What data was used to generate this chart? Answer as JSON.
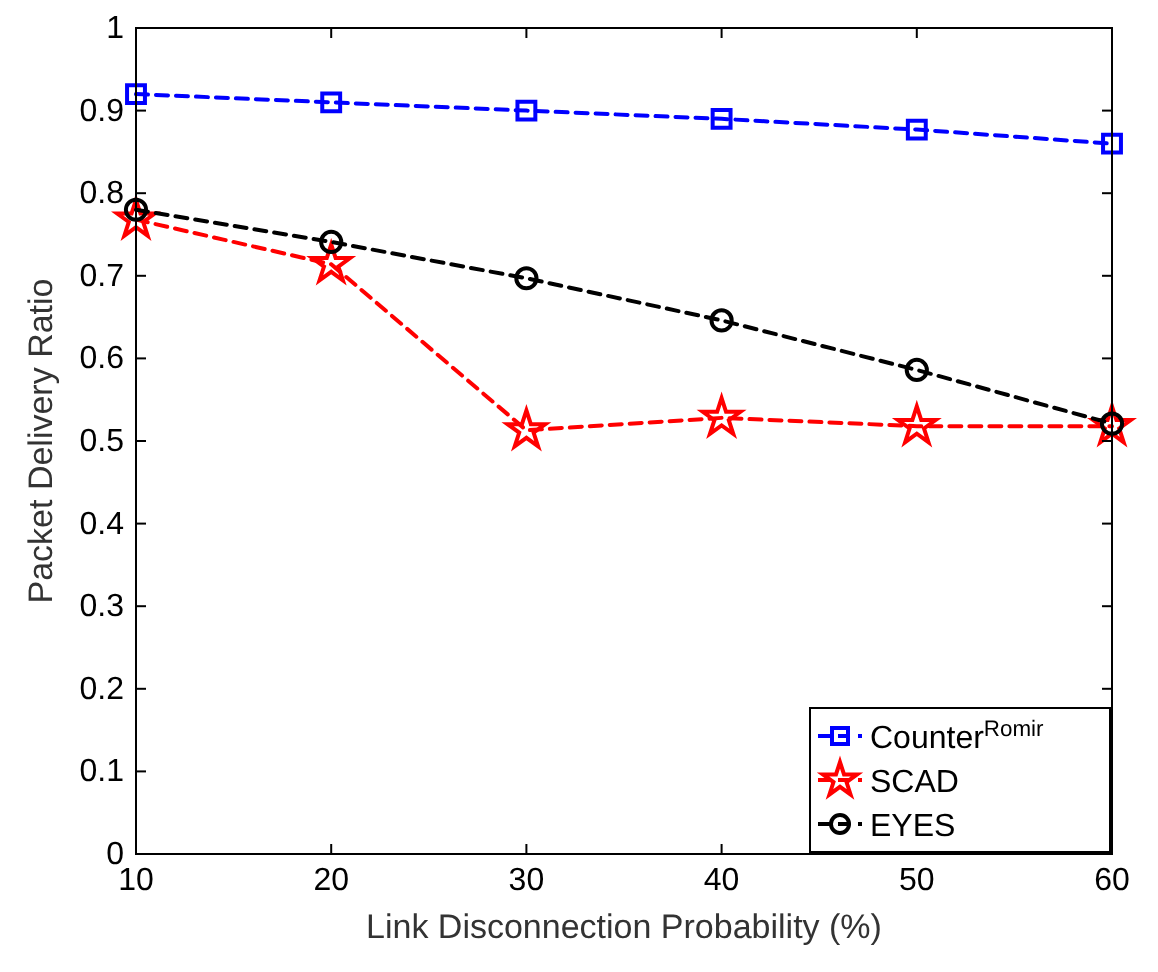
{
  "chart_data": {
    "type": "line",
    "xlabel": "Link Disconnection Probability (%)",
    "ylabel": "Packet Delivery Ratio",
    "x": [
      10,
      20,
      30,
      40,
      50,
      60
    ],
    "xlim": [
      10,
      60
    ],
    "xticks": [
      10,
      20,
      30,
      40,
      50,
      60
    ],
    "ylim": [
      0,
      1
    ],
    "yticks": [
      0,
      0.1,
      0.2,
      0.3,
      0.4,
      0.5,
      0.6,
      0.7,
      0.8,
      0.9,
      1
    ],
    "series": [
      {
        "name": "Counter$^{Romir}$",
        "color": "#0000ff",
        "marker": "square",
        "values": [
          0.92,
          0.91,
          0.9,
          0.89,
          0.877,
          0.86
        ]
      },
      {
        "name": "SCAD",
        "color": "#ff0000",
        "marker": "star",
        "values": [
          0.768,
          0.714,
          0.513,
          0.528,
          0.518,
          0.518
        ]
      },
      {
        "name": "EYES",
        "color": "#000000",
        "marker": "circle",
        "values": [
          0.78,
          0.741,
          0.697,
          0.646,
          0.586,
          0.521
        ]
      }
    ],
    "line_style": "dashed",
    "grid": false,
    "legend": "bottom right"
  }
}
